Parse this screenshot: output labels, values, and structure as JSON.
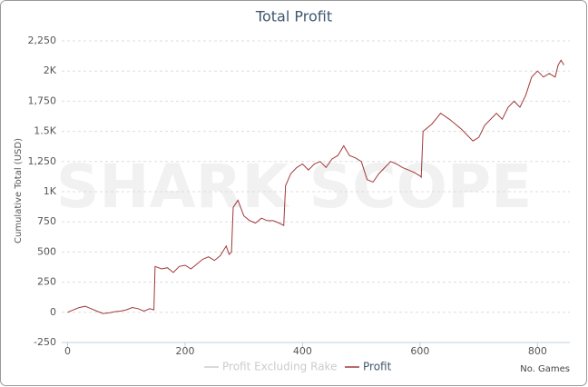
{
  "chart_data": {
    "type": "line",
    "title": "Total Profit",
    "watermark": "SHARK SCOPE",
    "x_label": "No. Games",
    "y_label": "Cumulative Total (USD)",
    "x": [
      0,
      10,
      20,
      30,
      40,
      50,
      60,
      70,
      80,
      90,
      100,
      110,
      120,
      130,
      140,
      147,
      149,
      160,
      170,
      180,
      190,
      200,
      210,
      220,
      230,
      240,
      250,
      260,
      270,
      275,
      279,
      282,
      290,
      300,
      310,
      320,
      330,
      340,
      350,
      360,
      368,
      371,
      380,
      390,
      400,
      410,
      420,
      430,
      440,
      450,
      460,
      470,
      480,
      490,
      500,
      510,
      520,
      530,
      540,
      550,
      560,
      570,
      580,
      590,
      600,
      602,
      605,
      620,
      635,
      650,
      670,
      690,
      700,
      710,
      730,
      740,
      750,
      760,
      770,
      780,
      790,
      800,
      810,
      820,
      830,
      835,
      840,
      845
    ],
    "series": [
      {
        "name": "Profit Excluding Rake",
        "color": "#cccccc",
        "visible": false,
        "values": [
          null,
          null,
          null,
          null,
          null,
          null,
          null,
          null,
          null,
          null,
          null,
          null,
          null,
          null,
          null,
          null,
          null,
          null,
          null,
          null,
          null,
          null,
          null,
          null,
          null,
          null,
          null,
          null,
          null,
          null,
          null,
          null,
          null,
          null,
          null,
          null,
          null,
          null,
          null,
          null,
          null,
          null,
          null,
          null,
          null,
          null,
          null,
          null,
          null,
          null,
          null,
          null,
          null,
          null,
          null,
          null,
          null,
          null,
          null,
          null,
          null,
          null,
          null,
          null,
          null,
          null,
          null,
          null,
          null,
          null,
          null,
          null,
          null,
          null,
          null,
          null,
          null,
          null,
          null,
          null,
          null,
          null,
          null,
          null,
          null,
          null,
          null,
          null
        ]
      },
      {
        "name": "Profit",
        "color": "#a0393b",
        "visible": true,
        "values": [
          0,
          20,
          40,
          50,
          30,
          10,
          -10,
          -5,
          5,
          10,
          20,
          40,
          30,
          10,
          30,
          20,
          380,
          360,
          370,
          330,
          380,
          390,
          360,
          400,
          440,
          460,
          430,
          470,
          550,
          480,
          500,
          870,
          930,
          800,
          760,
          740,
          780,
          760,
          760,
          740,
          720,
          1050,
          1150,
          1200,
          1230,
          1180,
          1230,
          1250,
          1200,
          1270,
          1300,
          1380,
          1300,
          1280,
          1250,
          1100,
          1080,
          1150,
          1200,
          1250,
          1230,
          1200,
          1180,
          1160,
          1130,
          1120,
          1500,
          1560,
          1650,
          1600,
          1520,
          1420,
          1450,
          1550,
          1650,
          1600,
          1700,
          1750,
          1700,
          1800,
          1950,
          2000,
          1950,
          1980,
          1950,
          2050,
          2090,
          2050
        ]
      }
    ],
    "xlim": [
      -10,
      855
    ],
    "xticks": [
      0,
      200,
      400,
      600,
      800
    ],
    "ylim": [
      -250,
      2250
    ],
    "yticks": [
      {
        "value": -250,
        "label": "-250"
      },
      0,
      250,
      500,
      750,
      {
        "value": 1000,
        "label": "1K"
      },
      {
        "value": 1250,
        "label": "1,250"
      },
      {
        "value": 1500,
        "label": "1.5K"
      },
      {
        "value": 1750,
        "label": "1,750"
      },
      {
        "value": 2000,
        "label": "2K"
      },
      {
        "value": 2250,
        "label": "2,250"
      }
    ],
    "grid": true
  }
}
